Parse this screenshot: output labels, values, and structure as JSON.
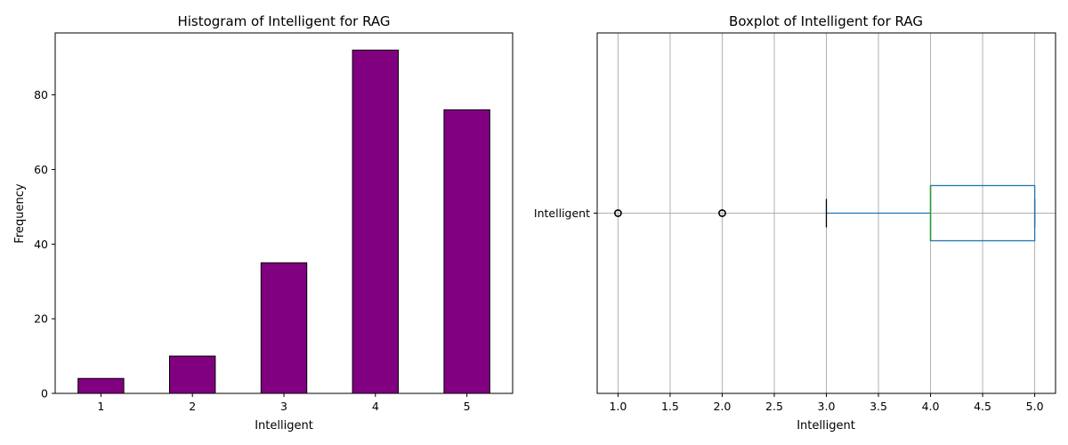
{
  "chart_data": [
    {
      "type": "bar",
      "title": "Histogram of Intelligent for RAG",
      "xlabel": "Intelligent",
      "ylabel": "Frequency",
      "categories": [
        "1",
        "2",
        "3",
        "4",
        "5"
      ],
      "values": [
        4,
        10,
        35,
        92,
        76
      ],
      "ylim": [
        0,
        96.6
      ],
      "yticks": [
        0,
        20,
        40,
        60,
        80
      ],
      "bar_color": "#800080",
      "edge_color": "#000000",
      "grid": false
    },
    {
      "type": "boxplot",
      "title": "Boxplot of Intelligent for RAG",
      "xlabel": "Intelligent",
      "category_label": "Intelligent",
      "xlim": [
        0.8,
        5.2
      ],
      "xticks": [
        1.0,
        1.5,
        2.0,
        2.5,
        3.0,
        3.5,
        4.0,
        4.5,
        5.0
      ],
      "xtick_labels": [
        "1.0",
        "1.5",
        "2.0",
        "2.5",
        "3.0",
        "3.5",
        "4.0",
        "4.5",
        "5.0"
      ],
      "box": {
        "whisker_low": 3.0,
        "q1": 4.0,
        "median": 4.0,
        "q3": 5.0,
        "whisker_high": 5.0
      },
      "outliers": [
        1.0,
        2.0
      ],
      "box_color": "#1f77b4",
      "median_color": "#2ca02c",
      "grid": true
    }
  ]
}
